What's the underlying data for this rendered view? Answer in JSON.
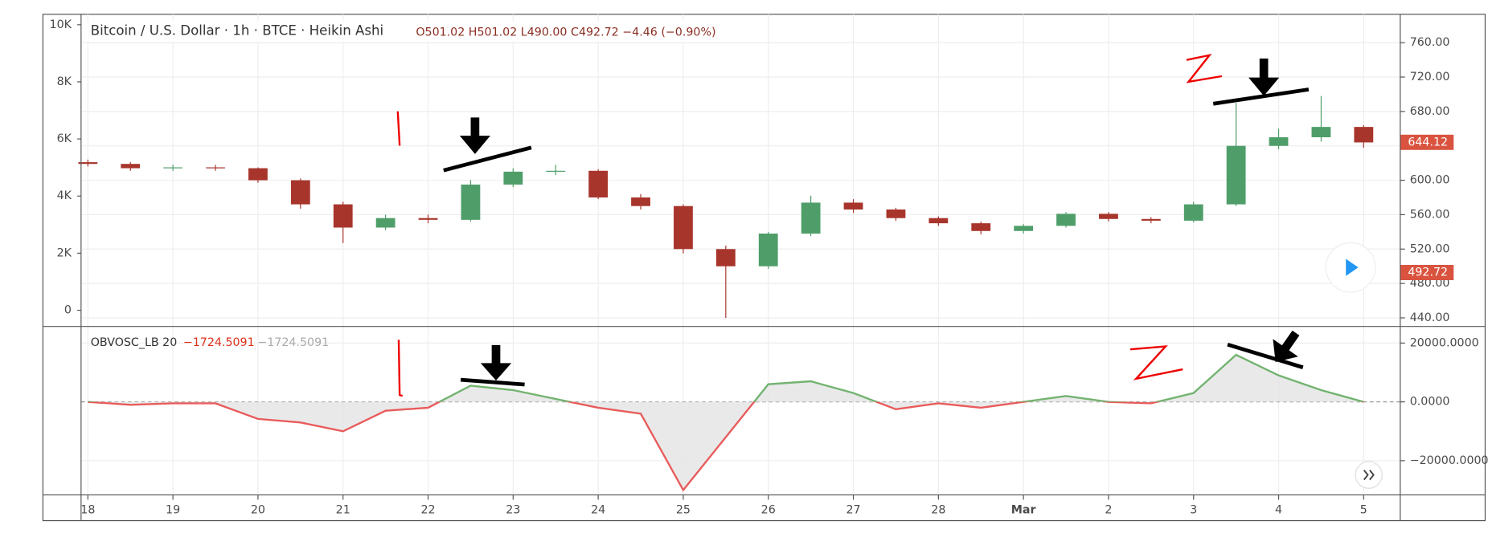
{
  "chart_data": [
    {
      "type": "candlestick",
      "title": "Bitcoin / U.S. Dollar · 1h · BTCE · Heikin Ashi",
      "readout": "O501.02 H501.02 L490.00 C492.72 −4.46 (−0.90%)",
      "x": [
        0,
        0.5,
        1,
        1.5,
        2,
        2.5,
        3,
        3.5,
        4,
        4.5,
        5,
        5.5,
        6,
        6.5,
        7,
        7.5,
        8,
        8.5,
        9,
        9.5,
        10,
        10.5,
        11,
        11.5,
        12,
        12.5,
        13,
        13.5,
        14,
        14.5,
        15
      ],
      "open": [
        621,
        619,
        614,
        615,
        614,
        600,
        572,
        545,
        556,
        554,
        595,
        610,
        611,
        580,
        570,
        520,
        500,
        538,
        574,
        566,
        556,
        550,
        541,
        547,
        561,
        555,
        553,
        572,
        640,
        650,
        662
      ],
      "high": [
        624,
        621,
        618,
        618,
        615,
        602,
        575,
        560,
        560,
        600,
        614,
        618,
        613,
        584,
        572,
        524,
        540,
        582,
        578,
        568,
        558,
        552,
        549,
        563,
        563,
        557,
        575,
        690,
        660,
        698,
        664
      ],
      "low": [
        616,
        611,
        611,
        611,
        597,
        567,
        527,
        542,
        550,
        552,
        592,
        606,
        578,
        566,
        515,
        440,
        497,
        535,
        562,
        553,
        547,
        537,
        538,
        545,
        552,
        550,
        551,
        570,
        636,
        645,
        638
      ],
      "close": [
        619,
        614,
        615,
        614,
        600,
        572,
        545,
        556,
        554,
        595,
        610,
        611,
        580,
        570,
        520,
        500,
        538,
        574,
        566,
        556,
        550,
        541,
        547,
        561,
        555,
        553,
        572,
        640,
        650,
        662,
        644
      ],
      "up_color": "#4f9e6a",
      "down_color": "#a8352c",
      "xlim": [
        -0.08,
        15.43
      ],
      "ylim": [
        430,
        793
      ],
      "yticks": [
        {
          "value": 440,
          "label": "440.00"
        },
        {
          "value": 480,
          "label": "480.00"
        },
        {
          "value": 520,
          "label": "520.00"
        },
        {
          "value": 560,
          "label": "560.00"
        },
        {
          "value": 600,
          "label": "600.00"
        },
        {
          "value": 640,
          "label": "640.00"
        },
        {
          "value": 680,
          "label": "680.00"
        },
        {
          "value": 720,
          "label": "720.00"
        },
        {
          "value": 760,
          "label": "760.00"
        }
      ],
      "y2lim": [
        -567,
        10367
      ],
      "y2ticks": [
        0,
        {
          "value": 2000,
          "label": "2K"
        },
        {
          "value": 4000,
          "label": "4K"
        },
        {
          "value": 6000,
          "label": "6K"
        },
        {
          "value": 8000,
          "label": "8K"
        },
        {
          "value": 10000,
          "label": "10K"
        }
      ],
      "last_price_labels": [
        644.12,
        492.72
      ],
      "grid": true
    },
    {
      "type": "line",
      "title": "OBVOSC_LB 20",
      "readout": [
        {
          "value": -1724.5091,
          "label": "−1724.5091"
        },
        {
          "value": -1724.5091,
          "label": "−1724.5091"
        }
      ],
      "x": [
        0,
        0.5,
        1,
        1.5,
        2,
        2.5,
        3,
        3.5,
        4,
        4.5,
        5,
        5.5,
        6,
        6.5,
        7,
        7.5,
        8,
        8.5,
        9,
        9.5,
        10,
        10.5,
        11,
        11.5,
        12,
        12.5,
        13,
        13.5,
        14,
        14.5,
        15
      ],
      "values": [
        0,
        -1000,
        -500,
        -500,
        -5800,
        -7000,
        -10000,
        -3000,
        -2000,
        5500,
        4000,
        1000,
        -2000,
        -4000,
        -30000,
        -12000,
        6000,
        7000,
        3000,
        -2500,
        -500,
        -2000,
        0,
        2000,
        0,
        -500,
        3000,
        16000,
        9000,
        4000,
        0
      ],
      "up_color": "#72b36f",
      "down_color": "#e95b5b",
      "xlim": [
        -0.08,
        15.43
      ],
      "ylim": [
        -31000,
        25000
      ],
      "yticks": [
        {
          "value": 20000,
          "label": "20000.0000"
        },
        {
          "value": 0,
          "label": "0.0000"
        },
        {
          "value": -20000,
          "label": "−20000.0000"
        }
      ],
      "xticks": [
        {
          "value": 0,
          "label": "18"
        },
        {
          "value": 1,
          "label": "19"
        },
        {
          "value": 2,
          "label": "20"
        },
        {
          "value": 3,
          "label": "21"
        },
        {
          "value": 4,
          "label": "22"
        },
        {
          "value": 5,
          "label": "23"
        },
        {
          "value": 6,
          "label": "24"
        },
        {
          "value": 7,
          "label": "25"
        },
        {
          "value": 8,
          "label": "26"
        },
        {
          "value": 9,
          "label": "27"
        },
        {
          "value": 10,
          "label": "28"
        },
        {
          "value": 11,
          "label": "Mar"
        },
        {
          "value": 12,
          "label": "2"
        },
        {
          "value": 13,
          "label": "3"
        },
        {
          "value": 14,
          "label": "4"
        },
        {
          "value": 15,
          "label": "5"
        }
      ],
      "grid": true
    }
  ]
}
